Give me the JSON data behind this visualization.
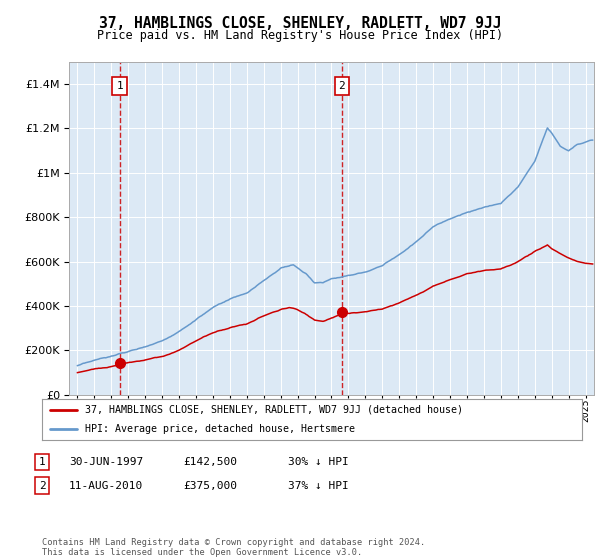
{
  "title": "37, HAMBLINGS CLOSE, SHENLEY, RADLETT, WD7 9JJ",
  "subtitle": "Price paid vs. HM Land Registry's House Price Index (HPI)",
  "plot_bg_color": "#dce9f5",
  "sale1_date": 1997.49,
  "sale1_price": 142500,
  "sale2_date": 2010.61,
  "sale2_price": 375000,
  "legend_line1": "37, HAMBLINGS CLOSE, SHENLEY, RADLETT, WD7 9JJ (detached house)",
  "legend_line2": "HPI: Average price, detached house, Hertsmere",
  "footer": "Contains HM Land Registry data © Crown copyright and database right 2024.\nThis data is licensed under the Open Government Licence v3.0.",
  "hpi_color": "#6699cc",
  "price_color": "#cc0000",
  "xmin": 1994.5,
  "xmax": 2025.5,
  "ymin": 0,
  "ymax": 1500000,
  "note1_date": "30-JUN-1997",
  "note1_price": "£142,500",
  "note1_pct": "30% ↓ HPI",
  "note2_date": "11-AUG-2010",
  "note2_price": "£375,000",
  "note2_pct": "37% ↓ HPI"
}
